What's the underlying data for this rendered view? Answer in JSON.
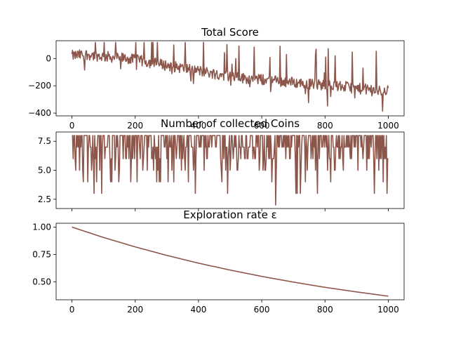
{
  "chart_data": [
    {
      "type": "line",
      "title": "Total Score",
      "xlabel": "",
      "ylabel": "",
      "xlim": [
        -50,
        1050
      ],
      "ylim": [
        -420,
        130
      ],
      "xticks": [
        0,
        200,
        400,
        600,
        800,
        1000
      ],
      "xtick_labels": [
        "0",
        "200",
        "400",
        "600",
        "800",
        "1000"
      ],
      "yticks": [
        -400,
        -200,
        0
      ],
      "ytick_labels": [
        "−400",
        "−200",
        "0"
      ],
      "grid": false,
      "color": "#8c564b",
      "series": [
        {
          "x": [
            0,
            25,
            50,
            75,
            100,
            125,
            150,
            175,
            200,
            225,
            250,
            275,
            300,
            325,
            350,
            375,
            400,
            425,
            450,
            475,
            500,
            525,
            550,
            575,
            600,
            625,
            650,
            675,
            700,
            725,
            750,
            775,
            800,
            825,
            850,
            875,
            900,
            925,
            950,
            975,
            1000
          ],
          "values": [
            20,
            25,
            30,
            20,
            15,
            10,
            5,
            0,
            -10,
            -20,
            -30,
            -40,
            -50,
            -60,
            -70,
            -80,
            -90,
            -100,
            -110,
            -120,
            -130,
            -140,
            -145,
            -150,
            -155,
            -160,
            -165,
            -170,
            -175,
            -180,
            -185,
            -190,
            -195,
            -200,
            -205,
            -210,
            -220,
            -225,
            -230,
            -240,
            -230
          ]
        }
      ]
    },
    {
      "type": "line",
      "title": "Number of collected Coins",
      "xlabel": "",
      "ylabel": "",
      "xlim": [
        -50,
        1050
      ],
      "ylim": [
        1.7,
        8.3
      ],
      "xticks": [
        0,
        200,
        400,
        600,
        800,
        1000
      ],
      "xtick_labels": [
        "",
        "",
        "",
        "",
        "",
        ""
      ],
      "yticks": [
        2.5,
        5.0,
        7.5
      ],
      "ytick_labels": [
        "2.5",
        "5.0",
        "7.5"
      ],
      "grid": false,
      "color": "#8c564b",
      "series": [
        {
          "x": [
            0,
            50,
            100,
            150,
            200,
            250,
            300,
            350,
            400,
            450,
            500,
            550,
            600,
            650,
            700,
            750,
            800,
            850,
            900,
            950,
            1000
          ],
          "values": [
            7.5,
            7.3,
            7.2,
            7.1,
            7.0,
            6.9,
            6.8,
            6.8,
            6.7,
            6.7,
            6.6,
            6.6,
            6.6,
            6.5,
            6.5,
            6.5,
            6.5,
            6.5,
            6.6,
            6.6,
            6.5
          ]
        }
      ]
    },
    {
      "type": "line",
      "title": "Exploration rate ε",
      "xlabel": "",
      "ylabel": "",
      "xlim": [
        -50,
        1050
      ],
      "ylim": [
        0.335,
        1.035
      ],
      "xticks": [
        0,
        200,
        400,
        600,
        800,
        1000
      ],
      "xtick_labels": [
        "0",
        "200",
        "400",
        "600",
        "800",
        "1000"
      ],
      "yticks": [
        0.5,
        0.75,
        1.0
      ],
      "ytick_labels": [
        "0.50",
        "0.75",
        "1.00"
      ],
      "grid": false,
      "color": "#8c564b",
      "series": [
        {
          "x": [
            0,
            100,
            200,
            300,
            400,
            500,
            600,
            700,
            800,
            900,
            1000
          ],
          "values": [
            1.0,
            0.905,
            0.819,
            0.741,
            0.67,
            0.607,
            0.549,
            0.497,
            0.449,
            0.407,
            0.368
          ]
        }
      ]
    }
  ]
}
